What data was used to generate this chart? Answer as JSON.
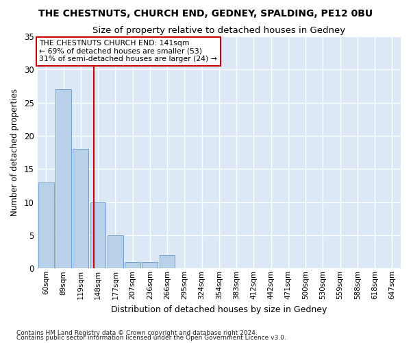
{
  "title": "THE CHESTNUTS, CHURCH END, GEDNEY, SPALDING, PE12 0BU",
  "subtitle": "Size of property relative to detached houses in Gedney",
  "xlabel": "Distribution of detached houses by size in Gedney",
  "ylabel": "Number of detached properties",
  "footnote1": "Contains HM Land Registry data © Crown copyright and database right 2024.",
  "footnote2": "Contains public sector information licensed under the Open Government Licence v3.0.",
  "bin_labels": [
    "60sqm",
    "89sqm",
    "119sqm",
    "148sqm",
    "177sqm",
    "207sqm",
    "236sqm",
    "266sqm",
    "295sqm",
    "324sqm",
    "354sqm",
    "383sqm",
    "412sqm",
    "442sqm",
    "471sqm",
    "500sqm",
    "530sqm",
    "559sqm",
    "588sqm",
    "618sqm",
    "647sqm"
  ],
  "bar_values": [
    13,
    27,
    18,
    10,
    5,
    1,
    1,
    2,
    0,
    0,
    0,
    0,
    0,
    0,
    0,
    0,
    0,
    0,
    0,
    0,
    0
  ],
  "bar_color": "#b8d0e8",
  "bar_edge_color": "#6699cc",
  "highlight_line_color": "#cc0000",
  "ylim": [
    0,
    35
  ],
  "yticks": [
    0,
    5,
    10,
    15,
    20,
    25,
    30,
    35
  ],
  "annotation_title": "THE CHESTNUTS CHURCH END: 141sqm",
  "annotation_line1": "← 69% of detached houses are smaller (53)",
  "annotation_line2": "31% of semi-detached houses are larger (24) →",
  "annotation_box_color": "#ffffff",
  "annotation_box_edge": "#cc0000",
  "background_color": "#dce8f5",
  "grid_color": "#ffffff",
  "title_fontsize": 10,
  "subtitle_fontsize": 9.5
}
